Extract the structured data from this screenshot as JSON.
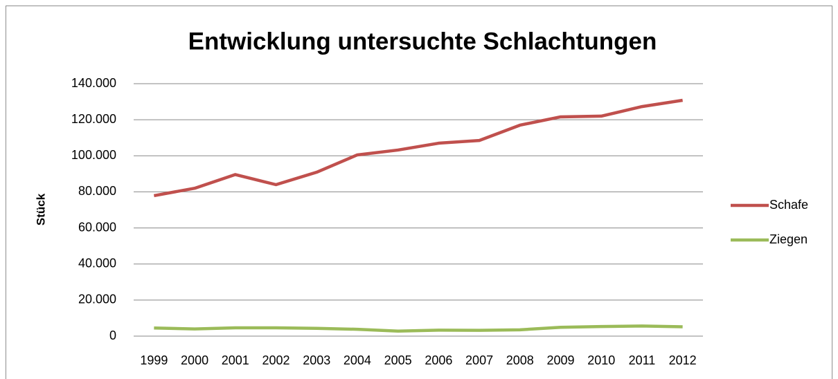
{
  "chart_data": {
    "type": "line",
    "title": "Entwicklung untersuchte Schlachtungen",
    "y_label": "Stück",
    "categories": [
      "1999",
      "2000",
      "2001",
      "2002",
      "2003",
      "2004",
      "2005",
      "2006",
      "2007",
      "2008",
      "2009",
      "2010",
      "2011",
      "2012"
    ],
    "series": [
      {
        "name": "Schafe",
        "color": "#c0504d",
        "values": [
          77900,
          82000,
          89600,
          84000,
          90900,
          100500,
          103200,
          107000,
          108500,
          117000,
          121600,
          122000,
          127300,
          130800
        ]
      },
      {
        "name": "Ziegen",
        "color": "#9bbb59",
        "values": [
          4500,
          4000,
          4600,
          4600,
          4300,
          3800,
          2800,
          3300,
          3200,
          3500,
          4900,
          5300,
          5600,
          5200
        ]
      }
    ],
    "ylim": [
      0,
      140000
    ],
    "yticks": [
      0,
      {
        "value": 20000,
        "label": "20.000"
      },
      {
        "value": 40000,
        "label": "40.000"
      },
      {
        "value": 60000,
        "label": "60.000"
      },
      {
        "value": 80000,
        "label": "80.000"
      },
      {
        "value": 100000,
        "label": "100.000"
      },
      {
        "value": 120000,
        "label": "120.000"
      },
      {
        "value": 140000,
        "label": "140.000"
      }
    ],
    "grid": true,
    "legend": "right"
  }
}
